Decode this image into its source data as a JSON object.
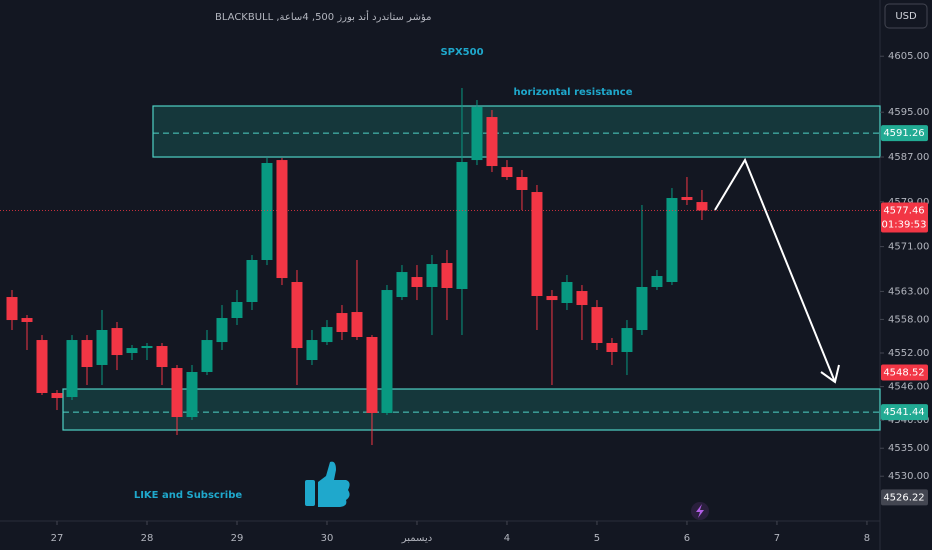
{
  "chart_data": {
    "type": "candlestick",
    "header": "مؤشر ستاندرد أند بورز 500, 4ساعة, BLACKBULL",
    "title": "SPX500",
    "annotations": [
      "horizontal resistance",
      "LIKE and Subscribe"
    ],
    "currency": "USD",
    "countdown": "01:39:53",
    "up_color": "#089981",
    "down_color": "#f23645",
    "grid": false,
    "open": [
      4562,
      4558.25,
      4554.32,
      4544.86,
      4544.14,
      4554.32,
      4549.86,
      4556.46,
      4552,
      4552.89,
      4553.25,
      4549.32,
      4540.57,
      4548.61,
      4553.96,
      4558.25,
      4561.11,
      4568.61,
      4586.46,
      4564.68,
      4550.75,
      4553.96,
      4559.14,
      4559.32,
      4554.86,
      4541.29,
      4562,
      4565.57,
      4563.79,
      4568.07,
      4563.43,
      4586.46,
      4594.14,
      4585.21,
      4583.43,
      4580.75,
      4562.18,
      4560.93,
      4563.07,
      4560.21,
      4553.79,
      4552.18,
      4556.11,
      4563.79,
      4564.68,
      4579.86,
      4578.96
    ],
    "high": [
      4563.25,
      4558.79,
      4555.21,
      4545.39,
      4555.21,
      4555.21,
      4559.68,
      4557.54,
      4553.43,
      4553.79,
      4553.79,
      4549.86,
      4549.86,
      4556.11,
      4560.57,
      4563.25,
      4569.5,
      4586.82,
      4586.82,
      4566.82,
      4556.11,
      4557.89,
      4560.57,
      4568.61,
      4555.21,
      4564.14,
      4567.71,
      4567.71,
      4569.5,
      4570.39,
      4599.32,
      4597.18,
      4595.39,
      4586.46,
      4584.68,
      4582,
      4563.25,
      4565.93,
      4564.14,
      4561.46,
      4554.68,
      4557.89,
      4578.43,
      4566.82,
      4581.46,
      4583.43,
      4581.11
    ],
    "low": [
      4556.11,
      4552.54,
      4544.5,
      4541.82,
      4543.61,
      4546.29,
      4546.29,
      4548.96,
      4550.75,
      4550.75,
      4546.29,
      4537.36,
      4540.04,
      4548.07,
      4552.54,
      4557,
      4559.68,
      4567.71,
      4564.14,
      4546.29,
      4549.86,
      4553.43,
      4554.32,
      4554.32,
      4535.57,
      4540.93,
      4561.46,
      4561.46,
      4555.21,
      4557.89,
      4555.21,
      4585.57,
      4584.32,
      4582.89,
      4577.54,
      4556.11,
      4546.29,
      4559.68,
      4554.32,
      4552.54,
      4549.86,
      4548.07,
      4555.21,
      4563.25,
      4564.14,
      4578.43,
      4575.75
    ],
    "close": [
      4557.89,
      4557.54,
      4544.86,
      4543.96,
      4554.32,
      4549.5,
      4556.11,
      4551.64,
      4552.89,
      4553.25,
      4549.5,
      4540.57,
      4548.61,
      4554.32,
      4558.25,
      4561.11,
      4568.61,
      4585.93,
      4565.39,
      4552.89,
      4554.32,
      4556.64,
      4555.75,
      4554.86,
      4541.29,
      4563.25,
      4566.46,
      4563.79,
      4567.89,
      4563.61,
      4586.11,
      4595.93,
      4585.39,
      4583.43,
      4581.11,
      4562.18,
      4561.46,
      4564.68,
      4560.57,
      4553.79,
      4552.18,
      4556.46,
      4563.79,
      4565.75,
      4579.68,
      4579.32,
      4577.46
    ],
    "xlim": [
      -0.8,
      57.87
    ],
    "xticks": [
      {
        "value": 3,
        "label": "27"
      },
      {
        "value": 9,
        "label": "28"
      },
      {
        "value": 15,
        "label": "29"
      },
      {
        "value": 21,
        "label": "30"
      },
      {
        "value": 27,
        "label": "ديسمبر"
      },
      {
        "value": 33,
        "label": "4"
      },
      {
        "value": 39,
        "label": "5"
      },
      {
        "value": 45,
        "label": "6"
      },
      {
        "value": 51,
        "label": "7"
      },
      {
        "value": 57,
        "label": "8"
      }
    ],
    "ylim": [
      4522.18,
      4615.04
    ],
    "yticks": [
      {
        "value": 4605,
        "label": "4605.00"
      },
      {
        "value": 4595,
        "label": "4595.00"
      },
      {
        "value": 4587,
        "label": "4587.00"
      },
      {
        "value": 4579,
        "label": "4579.00"
      },
      {
        "value": 4571,
        "label": "4571.00"
      },
      {
        "value": 4563,
        "label": "4563.00"
      },
      {
        "value": 4558,
        "label": "4558.00"
      },
      {
        "value": 4552,
        "label": "4552.00"
      },
      {
        "value": 4546,
        "label": "4546.00"
      },
      {
        "value": 4540,
        "label": "4540.00"
      },
      {
        "value": 4535,
        "label": "4535.00"
      },
      {
        "value": 4530,
        "label": "4530.00"
      }
    ],
    "zones": [
      {
        "top": 4596.11,
        "bottom": 4587,
        "level": 4591.26,
        "start": 10,
        "color": "#22ab94"
      },
      {
        "top": 4545.57,
        "bottom": 4538.25,
        "level": 4541.44,
        "start": 4,
        "color": "#22ab94"
      }
    ],
    "price_labels": [
      {
        "value": 4548.52,
        "color": "#f23645"
      },
      {
        "value": 4526.22,
        "color": "#434651"
      }
    ]
  }
}
